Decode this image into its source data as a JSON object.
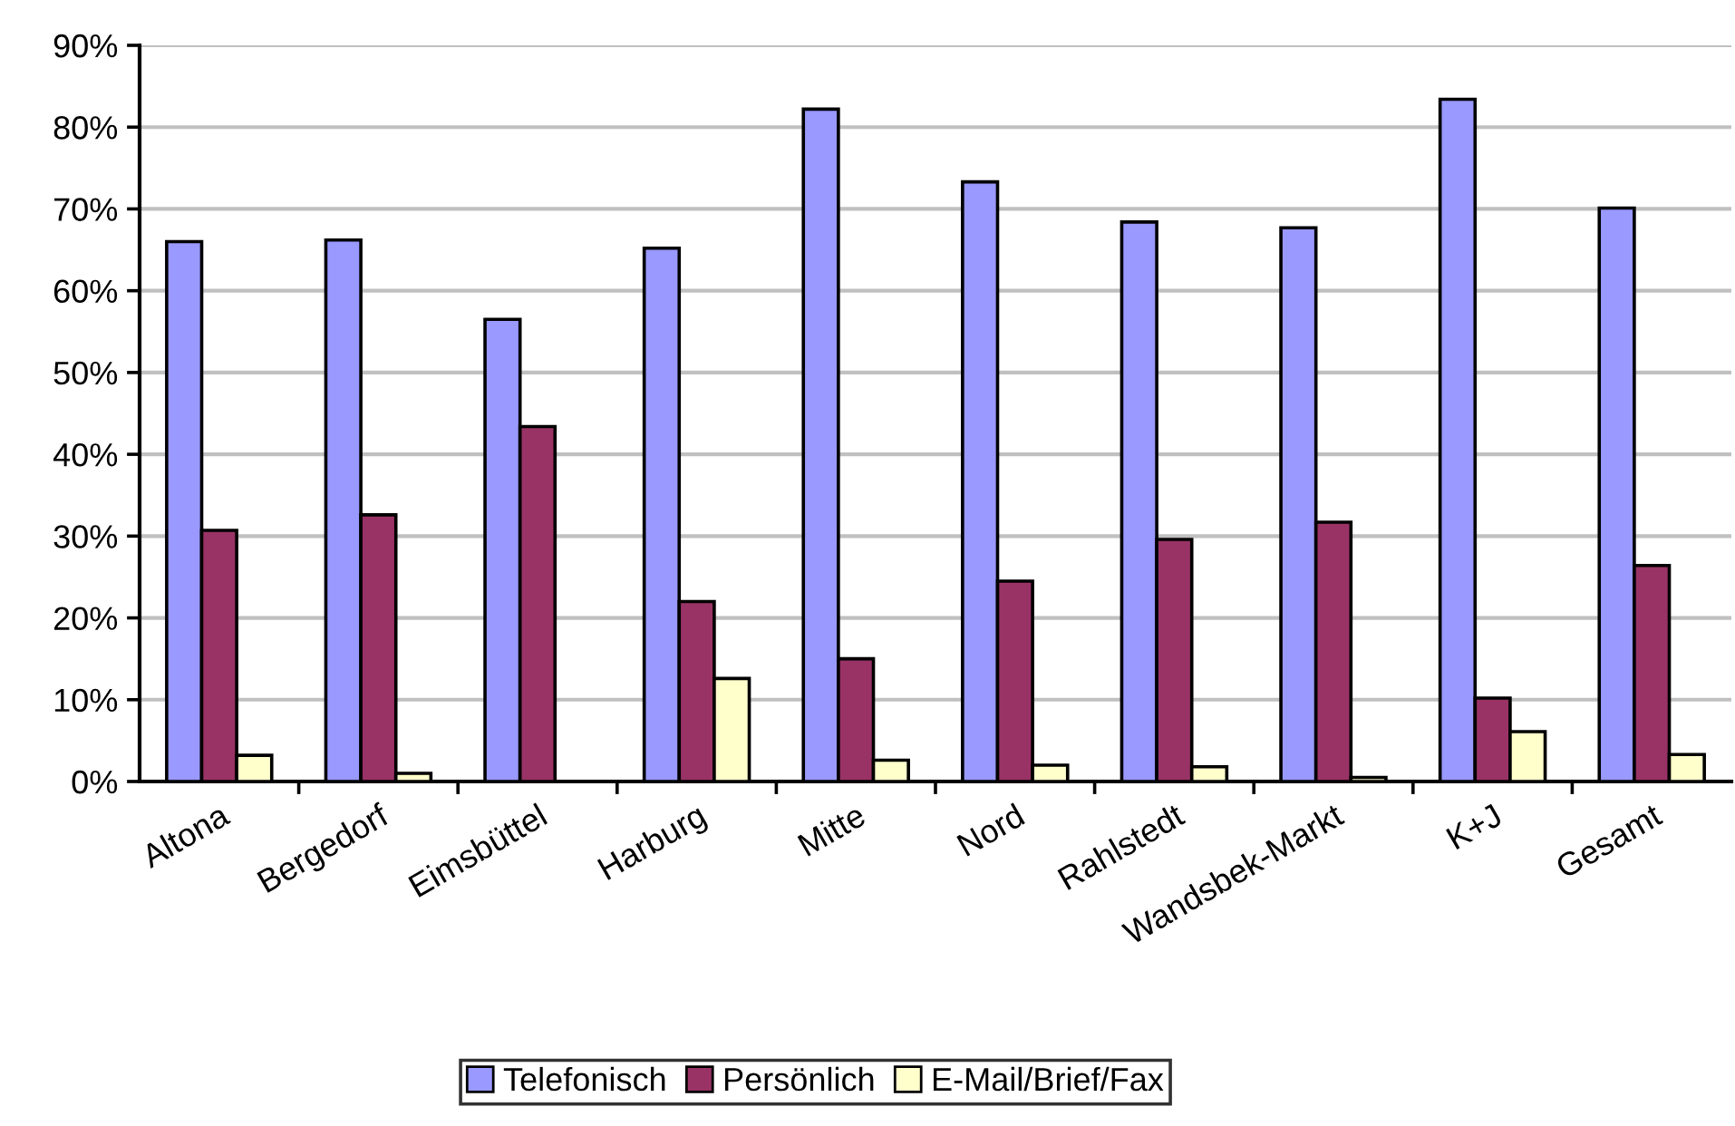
{
  "chart_data": {
    "type": "bar",
    "categories": [
      "Altona",
      "Bergedorf",
      "Eimsbüttel",
      "Harburg",
      "Mitte",
      "Nord",
      "Rahlstedt",
      "Wandsbek-Markt",
      "K+J",
      "Gesamt"
    ],
    "series": [
      {
        "name": "Telefonisch",
        "color": "#9999ff",
        "values": [
          66.0,
          66.2,
          56.5,
          65.2,
          82.2,
          73.3,
          68.4,
          67.7,
          83.4,
          70.1
        ]
      },
      {
        "name": "Persönlich",
        "color": "#993366",
        "values": [
          30.7,
          32.6,
          43.4,
          22.0,
          15.0,
          24.5,
          29.6,
          31.7,
          10.2,
          26.4
        ]
      },
      {
        "name": "E-Mail/Brief/Fax",
        "color": "#ffffcc",
        "values": [
          3.2,
          1.0,
          null,
          12.6,
          2.6,
          2.0,
          1.8,
          0.5,
          6.1,
          3.3
        ]
      }
    ],
    "ylim": [
      0,
      90
    ],
    "yticks": [
      {
        "value": 0,
        "label": "0%"
      },
      {
        "value": 10,
        "label": "10%"
      },
      {
        "value": 20,
        "label": "20%"
      },
      {
        "value": 30,
        "label": "30%"
      },
      {
        "value": 40,
        "label": "40%"
      },
      {
        "value": 50,
        "label": "50%"
      },
      {
        "value": 60,
        "label": "60%"
      },
      {
        "value": 70,
        "label": "70%"
      },
      {
        "value": 80,
        "label": "80%"
      },
      {
        "value": 90,
        "label": "90%"
      }
    ],
    "grid": "y",
    "legend": "bottom"
  }
}
